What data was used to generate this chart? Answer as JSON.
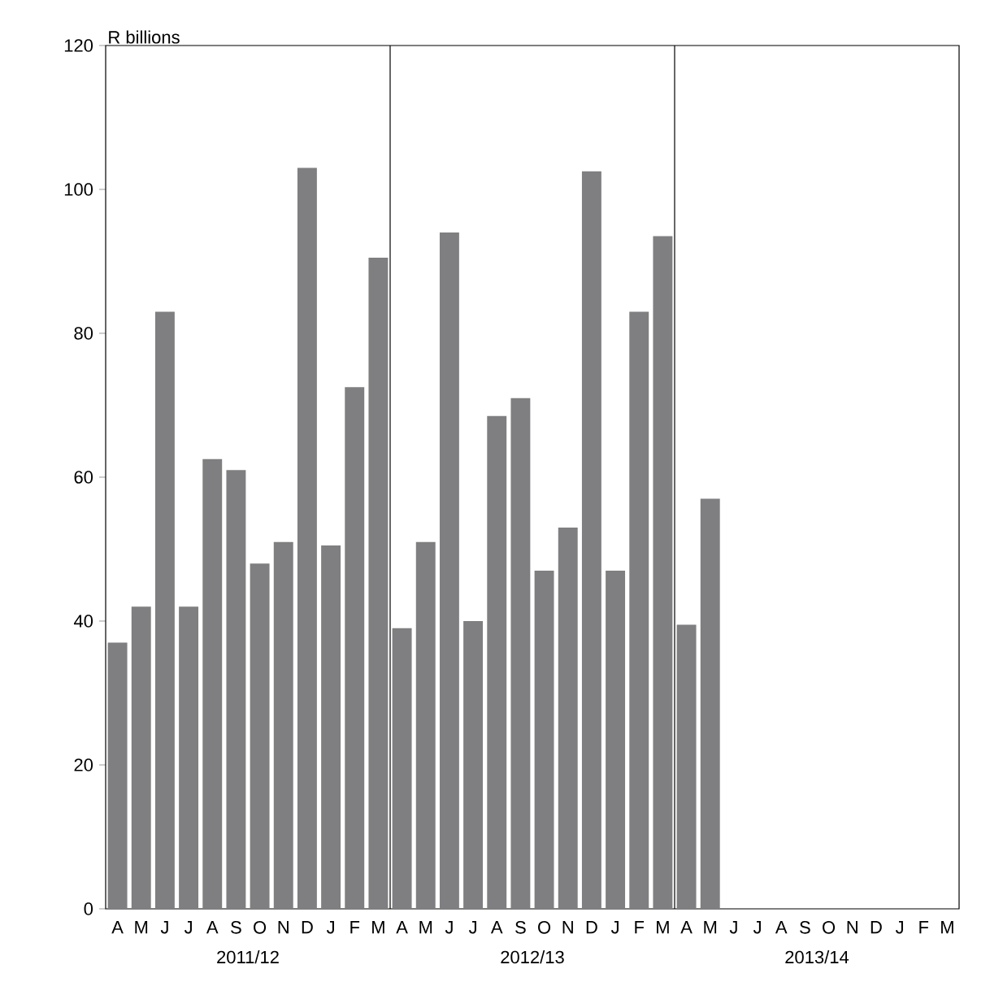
{
  "chart_data": {
    "type": "bar",
    "ylabel": "R billions",
    "categories": [
      "A",
      "M",
      "J",
      "J",
      "A",
      "S",
      "O",
      "N",
      "D",
      "J",
      "F",
      "M",
      "A",
      "M",
      "J",
      "J",
      "A",
      "S",
      "O",
      "N",
      "D",
      "J",
      "F",
      "M",
      "A",
      "M",
      "J",
      "J",
      "A",
      "S",
      "O",
      "N",
      "D",
      "J",
      "F",
      "M"
    ],
    "values": [
      37,
      42,
      83,
      42,
      62.5,
      61,
      48,
      51,
      103,
      50.5,
      72.5,
      90.5,
      39,
      51,
      94,
      40,
      68.5,
      71,
      47,
      53,
      102.5,
      47,
      83,
      93.5,
      39.5,
      57,
      null,
      null,
      null,
      null,
      null,
      null,
      null,
      null,
      null,
      null
    ],
    "color": "#7f7f81",
    "ylim": [
      0,
      120
    ],
    "yticks": [
      0,
      20,
      40,
      60,
      80,
      100,
      120
    ],
    "annotations": [
      "2011/12",
      "2012/13",
      "2013/14"
    ]
  }
}
